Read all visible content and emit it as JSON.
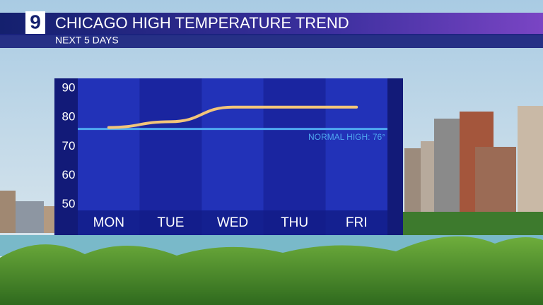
{
  "chart_data": {
    "type": "line",
    "title": "CHICAGO HIGH TEMPERATURE TREND",
    "subtitle": "NEXT 5 DAYS",
    "logo": "9",
    "categories": [
      "MON",
      "TUE",
      "WED",
      "THU",
      "FRI"
    ],
    "series": [
      {
        "name": "High temperature",
        "color": "#f2c57a",
        "values": [
          76.5,
          78.5,
          83.5,
          83.5,
          83.5
        ]
      }
    ],
    "ylim": [
      48,
      93
    ],
    "yticks": [
      50,
      60,
      70,
      80,
      90
    ],
    "reference_line": {
      "value": 76,
      "label": "NORMAL HIGH: 76°",
      "color": "#4fa9f0"
    }
  }
}
